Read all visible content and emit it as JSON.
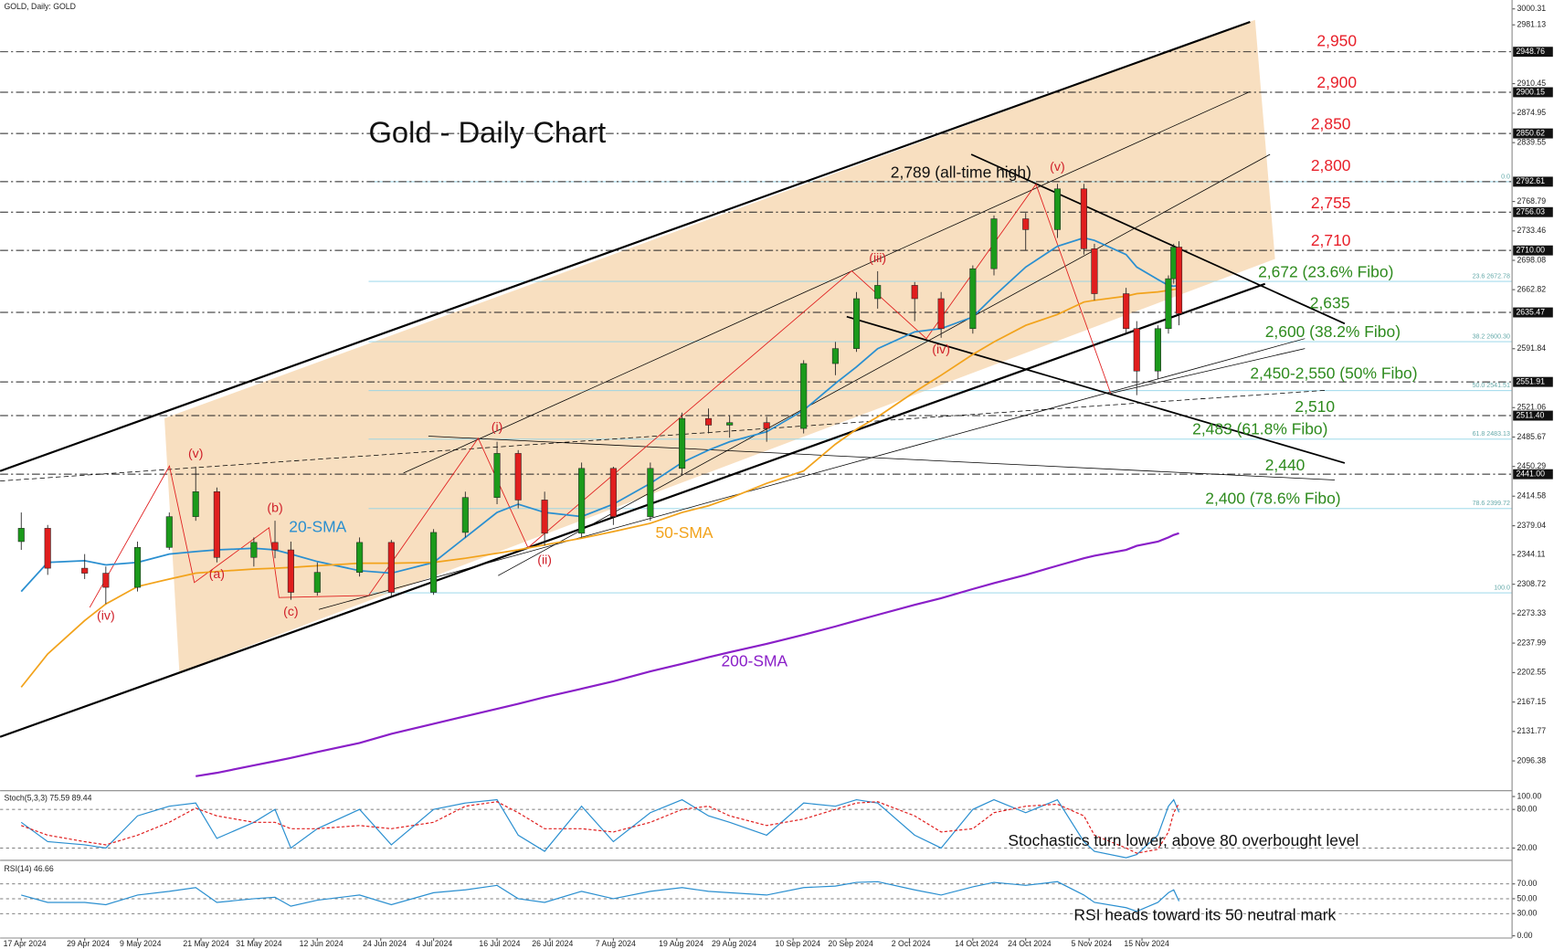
{
  "chart_data": [
    {
      "type": "candlestick",
      "header": "GOLD, Daily: GOLD",
      "title": "Gold - Daily Chart",
      "x": [
        "2024-04-17",
        "2024-04-22",
        "2024-04-29",
        "2024-05-03",
        "2024-05-09",
        "2024-05-15",
        "2024-05-20",
        "2024-05-24",
        "2024-05-31",
        "2024-06-04",
        "2024-06-07",
        "2024-06-12",
        "2024-06-20",
        "2024-06-26",
        "2024-07-04",
        "2024-07-10",
        "2024-07-16",
        "2024-07-20",
        "2024-07-25",
        "2024-08-01",
        "2024-08-07",
        "2024-08-14",
        "2024-08-20",
        "2024-08-25",
        "2024-08-29",
        "2024-09-05",
        "2024-09-12",
        "2024-09-18",
        "2024-09-22",
        "2024-09-26",
        "2024-10-03",
        "2024-10-08",
        "2024-10-14",
        "2024-10-18",
        "2024-10-24",
        "2024-10-30",
        "2024-11-04",
        "2024-11-06",
        "2024-11-12",
        "2024-11-14",
        "2024-11-18",
        "2024-11-20",
        "2024-11-21",
        "2024-11-22"
      ],
      "open": [
        2360,
        2376,
        2328,
        2322,
        2305,
        2353,
        2390,
        2420,
        2341,
        2359,
        2350,
        2299,
        2323,
        2359,
        2299,
        2371,
        2413,
        2466,
        2410,
        2370,
        2448,
        2390,
        2448,
        2508,
        2500,
        2503,
        2496,
        2574,
        2592,
        2652,
        2668,
        2652,
        2616,
        2688,
        2748,
        2735,
        2784,
        2712,
        2658,
        2616,
        2565,
        2616,
        2676,
        2714
      ],
      "high": [
        2395,
        2380,
        2345,
        2330,
        2360,
        2395,
        2450,
        2425,
        2365,
        2385,
        2360,
        2335,
        2365,
        2362,
        2375,
        2420,
        2480,
        2470,
        2420,
        2455,
        2450,
        2455,
        2515,
        2520,
        2512,
        2510,
        2578,
        2600,
        2660,
        2685,
        2672,
        2660,
        2692,
        2752,
        2755,
        2790,
        2790,
        2718,
        2665,
        2625,
        2620,
        2680,
        2718,
        2721
      ],
      "low": [
        2350,
        2320,
        2315,
        2285,
        2300,
        2350,
        2385,
        2335,
        2330,
        2340,
        2290,
        2295,
        2318,
        2295,
        2296,
        2365,
        2405,
        2400,
        2355,
        2365,
        2380,
        2385,
        2440,
        2490,
        2485,
        2480,
        2490,
        2560,
        2588,
        2640,
        2625,
        2605,
        2610,
        2680,
        2710,
        2725,
        2705,
        2650,
        2610,
        2536,
        2555,
        2610,
        2670,
        2620
      ],
      "close": [
        2376,
        2328,
        2322,
        2305,
        2353,
        2390,
        2420,
        2341,
        2359,
        2350,
        2299,
        2323,
        2359,
        2299,
        2371,
        2413,
        2466,
        2410,
        2370,
        2448,
        2390,
        2448,
        2508,
        2500,
        2503,
        2496,
        2574,
        2592,
        2652,
        2668,
        2652,
        2616,
        2688,
        2748,
        2735,
        2784,
        2712,
        2658,
        2616,
        2565,
        2616,
        2676,
        2714,
        2634
      ],
      "up_color": "#1b9a1b",
      "down_color": "#e01e1e",
      "series": [
        {
          "name": "20-SMA",
          "color": "#2a8fd0",
          "values": [
            2300,
            2335,
            2337,
            2332,
            2335,
            2345,
            2348,
            2350,
            2352,
            2350,
            2345,
            2336,
            2325,
            2322,
            2335,
            2365,
            2395,
            2405,
            2395,
            2390,
            2405,
            2430,
            2455,
            2470,
            2480,
            2492,
            2518,
            2550,
            2570,
            2592,
            2612,
            2616,
            2630,
            2655,
            2690,
            2715,
            2725,
            2722,
            2705,
            2690,
            2675,
            2668,
            2667,
            2668
          ]
        },
        {
          "name": "50-SMA",
          "color": "#f2a31c",
          "values": [
            2185,
            2225,
            2265,
            2285,
            2306,
            2315,
            2322,
            2324,
            2327,
            2328,
            2329,
            2331,
            2334,
            2334,
            2335,
            2340,
            2346,
            2350,
            2356,
            2364,
            2372,
            2382,
            2395,
            2403,
            2412,
            2430,
            2445,
            2477,
            2495,
            2510,
            2540,
            2560,
            2585,
            2600,
            2620,
            2633,
            2648,
            2650,
            2655,
            2658,
            2660,
            2662,
            2663,
            2664
          ]
        },
        {
          "name": "200-SMA",
          "color": "#8a1fc8",
          "values": [
            null,
            null,
            null,
            null,
            null,
            null,
            2078,
            2082,
            2091,
            2096,
            2100,
            2107,
            2118,
            2129,
            2141,
            2150,
            2159,
            2165,
            2173,
            2183,
            2192,
            2204,
            2213,
            2221,
            2227,
            2237,
            2248,
            2258,
            2265,
            2272,
            2284,
            2292,
            2303,
            2310,
            2320,
            2331,
            2340,
            2343,
            2350,
            2355,
            2360,
            2365,
            2368,
            2370
          ]
        }
      ],
      "xlim": [
        "2024-04-13",
        "2025-01-24"
      ],
      "ylim": [
        2063,
        3011
      ],
      "xticks": [
        {
          "value": "2024-04-17",
          "label": "17 Apr 2024"
        },
        {
          "value": "2024-04-29",
          "label": "29 Apr 2024"
        },
        {
          "value": "2024-05-09",
          "label": "9 May 2024"
        },
        {
          "value": "2024-05-21",
          "label": "21 May 2024"
        },
        {
          "value": "2024-05-31",
          "label": "31 May 2024"
        },
        {
          "value": "2024-06-12",
          "label": "12 Jun 2024"
        },
        {
          "value": "2024-06-24",
          "label": "24 Jun 2024"
        },
        {
          "value": "2024-07-04",
          "label": "4 Jul 2024"
        },
        {
          "value": "2024-07-16",
          "label": "16 Jul 2024"
        },
        {
          "value": "2024-07-26",
          "label": "26 Jul 2024"
        },
        {
          "value": "2024-08-07",
          "label": "7 Aug 2024"
        },
        {
          "value": "2024-08-19",
          "label": "19 Aug 2024"
        },
        {
          "value": "2024-08-29",
          "label": "29 Aug 2024"
        },
        {
          "value": "2024-09-10",
          "label": "10 Sep 2024"
        },
        {
          "value": "2024-09-20",
          "label": "20 Sep 2024"
        },
        {
          "value": "2024-10-02",
          "label": "2 Oct 2024"
        },
        {
          "value": "2024-10-14",
          "label": "14 Oct 2024"
        },
        {
          "value": "2024-10-24",
          "label": "24 Oct 2024"
        },
        {
          "value": "2024-11-05",
          "label": "5 Nov 2024"
        },
        {
          "value": "2024-11-15",
          "label": "15 Nov 2024"
        }
      ],
      "yticks": [
        3000.31,
        2981.13,
        2910.45,
        2874.95,
        2839.55,
        2768.79,
        2733.46,
        2698.08,
        2662.82,
        2591.84,
        2521.06,
        2485.67,
        2450.29,
        2414.58,
        2379.04,
        2344.11,
        2308.72,
        2273.33,
        2237.99,
        2202.55,
        2167.15,
        2131.77,
        2096.38
      ],
      "level_lines": [
        2948.76,
        2900.15,
        2850.62,
        2792.61,
        2756.03,
        {
          "value": 2710,
          "label": "2710.00"
        },
        2635.47,
        2551.91,
        {
          "value": 2511.4,
          "label": "2511.40"
        },
        {
          "value": 2441,
          "label": "2441.00"
        }
      ],
      "fibo_lines": [
        {
          "value": 2792.61,
          "label": "0.0"
        },
        {
          "value": 2672.78,
          "label": "23.6 2672.78"
        },
        {
          "value": 2600.3,
          "label": "38.2 2600.30"
        },
        {
          "value": 2541.51,
          "label": "50.0 2541.51"
        },
        {
          "value": 2483.13,
          "label": "61.8 2483.13"
        },
        {
          "value": 2399.72,
          "label": "78.6 2399.72"
        },
        {
          "value": 2298.41,
          "label": "100.0"
        }
      ],
      "levels": [
        {
          "value": 2950,
          "label": "2,950",
          "color": "#e8202a"
        },
        {
          "value": 2900,
          "label": "2,900",
          "color": "#e8202a"
        },
        {
          "value": 2850,
          "label": "2,850",
          "color": "#e8202a"
        },
        {
          "value": 2800,
          "label": "2,800",
          "color": "#e8202a"
        },
        {
          "value": 2755,
          "label": "2,755",
          "color": "#e8202a"
        },
        {
          "value": 2710,
          "label": "2,710",
          "color": "#e8202a"
        },
        {
          "value": 2672,
          "label": "2,672 (23.6% Fibo)",
          "color": "#2e8b1e"
        },
        {
          "value": 2635,
          "label": "2,635",
          "color": "#2e8b1e"
        },
        {
          "value": 2600,
          "label": "2,600 (38.2% Fibo)",
          "color": "#2e8b1e"
        },
        {
          "value": 2550,
          "label": "2,450-2,550 (50% Fibo)",
          "color": "#2e8b1e"
        },
        {
          "value": 2510,
          "label": "2,510",
          "color": "#2e8b1e"
        },
        {
          "value": 2483,
          "label": "2,483 (61.8% Fibo)",
          "color": "#2e8b1e"
        },
        {
          "value": 2440,
          "label": "2,440",
          "color": "#2e8b1e"
        },
        {
          "value": 2400,
          "label": "2,400 (78.6% Fibo)",
          "color": "#2e8b1e"
        }
      ],
      "wave_labels": [
        {
          "label": "(iv)",
          "x": "2024-05-03",
          "y": 2270
        },
        {
          "label": "(v)",
          "x": "2024-05-20",
          "y": 2465
        },
        {
          "label": "(a)",
          "x": "2024-05-24",
          "y": 2320
        },
        {
          "label": "(b)",
          "x": "2024-06-04",
          "y": 2400
        },
        {
          "label": "(c)",
          "x": "2024-06-07",
          "y": 2275
        },
        {
          "label": "(i)",
          "x": "2024-07-16",
          "y": 2497
        },
        {
          "label": "(ii)",
          "x": "2024-07-25",
          "y": 2337
        },
        {
          "label": "(iii)",
          "x": "2024-09-26",
          "y": 2700
        },
        {
          "label": "(iv)",
          "x": "2024-10-08",
          "y": 2590
        },
        {
          "label": "(v)",
          "x": "2024-10-30",
          "y": 2810
        }
      ],
      "annotation": "2,789 (all-time high)"
    },
    {
      "type": "line",
      "title": "Stoch(5,3,3) 75.59 89.44",
      "series": [
        {
          "color": "#2a8fd0",
          "dashed": false,
          "values": [
            60,
            30,
            25,
            20,
            70,
            85,
            90,
            35,
            60,
            80,
            20,
            50,
            80,
            25,
            80,
            90,
            95,
            40,
            15,
            85,
            30,
            75,
            95,
            70,
            60,
            40,
            90,
            85,
            95,
            90,
            40,
            20,
            80,
            95,
            75,
            95,
            30,
            15,
            5,
            10,
            40,
            85,
            95,
            75.59
          ]
        },
        {
          "color": "#e01e1e",
          "dashed": true,
          "values": [
            55,
            40,
            30,
            25,
            40,
            60,
            82,
            70,
            60,
            60,
            50,
            50,
            55,
            50,
            60,
            85,
            92,
            75,
            50,
            50,
            45,
            60,
            80,
            85,
            70,
            55,
            65,
            80,
            90,
            92,
            70,
            45,
            50,
            75,
            85,
            88,
            70,
            40,
            20,
            12,
            18,
            45,
            75,
            89.44
          ]
        }
      ],
      "ylim": [
        4,
        106
      ],
      "yticks": [
        {
          "value": 100,
          "label": "100.00"
        },
        {
          "value": 80,
          "label": "80.00"
        },
        {
          "value": 20,
          "label": "20.00"
        }
      ],
      "reference_lines": [
        80,
        20
      ],
      "annotation": "Stochastics turn lower, above 80 overbought level"
    },
    {
      "type": "line",
      "title": "RSI(14) 46.66",
      "series": [
        {
          "color": "#2a8fd0",
          "dashed": false,
          "values": [
            55,
            45,
            45,
            42,
            55,
            60,
            65,
            45,
            50,
            52,
            40,
            48,
            55,
            42,
            58,
            62,
            68,
            50,
            45,
            60,
            50,
            60,
            65,
            60,
            58,
            55,
            65,
            67,
            72,
            73,
            62,
            55,
            66,
            72,
            68,
            73,
            55,
            45,
            38,
            33,
            45,
            58,
            62,
            46.66
          ]
        }
      ],
      "ylim": [
        -3,
        99
      ],
      "yticks": [
        {
          "value": 70,
          "label": "70.00"
        },
        {
          "value": 50,
          "label": "50.00"
        },
        {
          "value": 30,
          "label": "30.00"
        },
        {
          "value": 0,
          "label": "0.00"
        }
      ],
      "reference_lines": [
        70,
        50,
        30
      ],
      "annotation": "RSI heads toward its 50 neutral mark"
    }
  ]
}
